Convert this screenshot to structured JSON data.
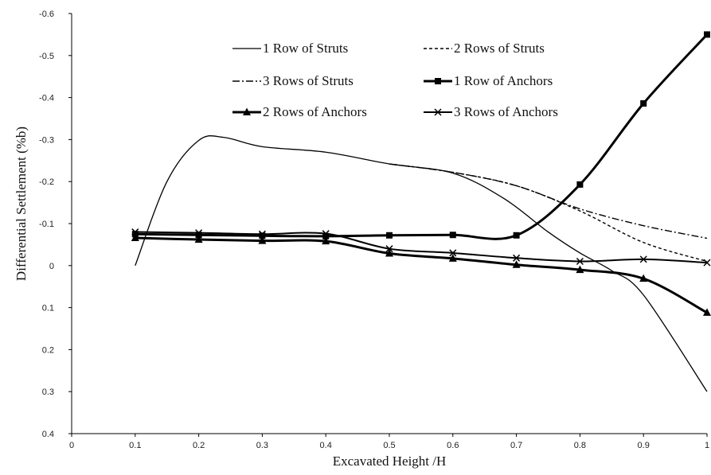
{
  "chart_data": {
    "type": "line",
    "title": "",
    "xlabel": "Excavated Height /H",
    "ylabel": "Differential Settlement (%b)",
    "xlim": [
      0,
      1
    ],
    "ylim": [
      0.4,
      -0.6
    ],
    "y_axis_inverted": true,
    "grid": false,
    "legend_placement": "top-center",
    "x_ticks": [
      "0",
      "0.1",
      "0.2",
      "0.3",
      "0.4",
      "0.5",
      "0.6",
      "0.7",
      "0.8",
      "0.9",
      "1"
    ],
    "y_ticks": [
      "-0.6",
      "-0.5",
      "-0.4",
      "-0.3",
      "-0.2",
      "-0.1",
      "0",
      "0.1",
      "0.2",
      "0.3",
      "0.4"
    ],
    "series": [
      {
        "name": "1 Row of Struts",
        "style": "solid-thin",
        "marker": "none",
        "x": [
          0.1,
          0.15,
          0.2,
          0.24,
          0.3,
          0.4,
          0.5,
          0.6,
          0.68,
          0.75,
          0.8,
          0.85,
          0.9,
          1.0
        ],
        "y": [
          0.0,
          -0.2,
          -0.298,
          -0.305,
          -0.283,
          -0.27,
          -0.242,
          -0.22,
          -0.16,
          -0.08,
          -0.03,
          0.012,
          0.07,
          0.3
        ]
      },
      {
        "name": "2 Rows of Struts",
        "style": "dashed",
        "marker": "none",
        "x": [
          0.5,
          0.6,
          0.7,
          0.8,
          0.9,
          1.0
        ],
        "y": [
          -0.242,
          -0.222,
          -0.19,
          -0.13,
          -0.055,
          -0.01
        ]
      },
      {
        "name": "3 Rows of Struts",
        "style": "dash-dot",
        "marker": "none",
        "x": [
          0.5,
          0.6,
          0.7,
          0.8,
          0.9,
          1.0
        ],
        "y": [
          -0.242,
          -0.222,
          -0.19,
          -0.135,
          -0.095,
          -0.065
        ]
      },
      {
        "name": "1 Row of Anchors",
        "style": "solid-thick",
        "marker": "square",
        "x": [
          0.1,
          0.2,
          0.3,
          0.4,
          0.5,
          0.6,
          0.7,
          0.8,
          0.9,
          1.0
        ],
        "y": [
          -0.075,
          -0.073,
          -0.071,
          -0.07,
          -0.072,
          -0.073,
          -0.072,
          -0.193,
          -0.386,
          -0.55
        ]
      },
      {
        "name": "2 Rows of Anchors",
        "style": "solid-thick",
        "marker": "triangle",
        "x": [
          0.1,
          0.2,
          0.3,
          0.4,
          0.5,
          0.6,
          0.7,
          0.8,
          0.9,
          1.0
        ],
        "y": [
          -0.066,
          -0.062,
          -0.059,
          -0.058,
          -0.029,
          -0.017,
          -0.002,
          0.01,
          0.031,
          0.112
        ]
      },
      {
        "name": "3 Rows of Anchors",
        "style": "solid",
        "marker": "x",
        "x": [
          0.1,
          0.2,
          0.3,
          0.4,
          0.5,
          0.6,
          0.7,
          0.8,
          0.9,
          1.0
        ],
        "y": [
          -0.08,
          -0.078,
          -0.075,
          -0.076,
          -0.04,
          -0.03,
          -0.018,
          -0.01,
          -0.015,
          -0.007
        ]
      }
    ]
  }
}
